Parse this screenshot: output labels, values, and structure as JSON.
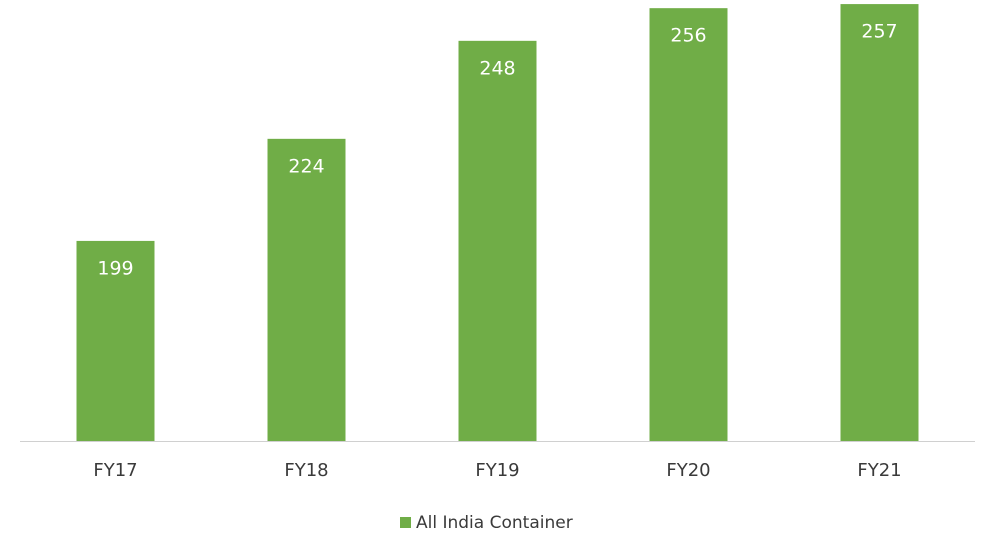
{
  "chart_data": {
    "type": "bar",
    "categories": [
      "FY17",
      "FY18",
      "FY19",
      "FY20",
      "FY21"
    ],
    "series": [
      {
        "name": "All India Container",
        "color": "#70ad47",
        "values": [
          199,
          224,
          248,
          256,
          257
        ]
      }
    ],
    "ylim": [
      150,
      258
    ],
    "legend": "bottom"
  }
}
